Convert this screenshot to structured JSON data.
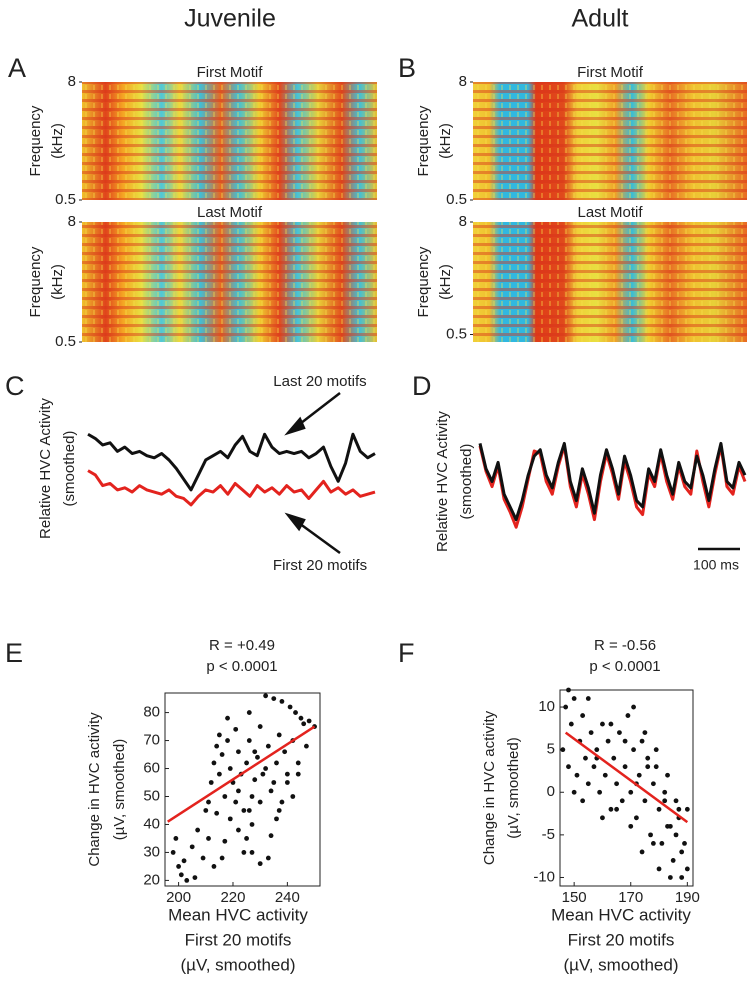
{
  "column_titles": [
    "Juvenile",
    "Adult"
  ],
  "chart_data": [
    {
      "type": "spectrogram",
      "panel": "A",
      "title": "First Motif",
      "ylabel": [
        "Frequency",
        "(kHz)"
      ],
      "ylim": [
        0.5,
        8
      ],
      "yticks": [
        0.5,
        8
      ]
    },
    {
      "type": "spectrogram",
      "title": "Last Motif",
      "ylabel": [
        "Frequency",
        "(kHz)"
      ],
      "ylim": [
        0.5,
        8
      ],
      "yticks": [
        0.5,
        8
      ]
    },
    {
      "type": "spectrogram",
      "panel": "B",
      "title": "First Motif",
      "ylabel": [
        "Frequency",
        "(kHz)"
      ],
      "ylim": [
        0.5,
        8
      ],
      "yticks": [
        0.5,
        8
      ]
    },
    {
      "type": "spectrogram",
      "title": "Last Motif",
      "ylabel": [
        "Frequency",
        "(kHz)"
      ],
      "ylim": [
        0,
        8
      ],
      "yticks": [
        0.5,
        8
      ]
    },
    {
      "type": "line",
      "panel": "C",
      "ylabel": [
        "Relative HVC Activity",
        "(smoothed)"
      ],
      "ylim": [
        0,
        100
      ],
      "series": [
        {
          "name": "Last 20 motifs",
          "color": "#111111",
          "values": [
            82,
            78,
            72,
            74,
            66,
            70,
            64,
            66,
            62,
            60,
            64,
            58,
            50,
            40,
            30,
            44,
            58,
            62,
            66,
            60,
            72,
            80,
            66,
            62,
            82,
            70,
            64,
            66,
            64,
            66,
            60,
            64,
            70,
            52,
            38,
            55,
            82,
            66,
            60,
            64
          ]
        },
        {
          "name": "First 20 motifs",
          "color": "#e3231e",
          "values": [
            48,
            44,
            34,
            36,
            30,
            32,
            28,
            34,
            30,
            28,
            26,
            30,
            24,
            22,
            16,
            24,
            30,
            28,
            34,
            26,
            36,
            30,
            24,
            34,
            28,
            32,
            26,
            34,
            28,
            30,
            22,
            30,
            38,
            28,
            32,
            26,
            30,
            24,
            26,
            28
          ]
        }
      ]
    },
    {
      "type": "line",
      "panel": "D",
      "ylabel": [
        "Relative HVC Activity",
        "(smoothed)"
      ],
      "ylim": [
        0,
        100
      ],
      "scalebar": "100 ms",
      "series": [
        {
          "color": "#e3231e",
          "values": [
            78,
            58,
            46,
            62,
            36,
            26,
            14,
            30,
            52,
            74,
            72,
            50,
            40,
            62,
            78,
            46,
            30,
            56,
            40,
            20,
            50,
            72,
            56,
            36,
            66,
            50,
            30,
            24,
            56,
            46,
            72,
            50,
            36,
            62,
            46,
            40,
            74,
            50,
            30,
            56,
            78,
            46,
            40,
            62,
            50
          ]
        },
        {
          "color": "#111111",
          "values": [
            80,
            60,
            50,
            65,
            40,
            30,
            20,
            35,
            55,
            70,
            75,
            55,
            45,
            65,
            80,
            50,
            35,
            60,
            45,
            25,
            55,
            75,
            60,
            40,
            70,
            55,
            35,
            30,
            60,
            50,
            75,
            55,
            40,
            65,
            50,
            45,
            70,
            55,
            35,
            60,
            80,
            50,
            45,
            65,
            55
          ]
        }
      ]
    },
    {
      "type": "scatter",
      "panel": "E",
      "title": [
        "R = +0.49",
        "p < 0.0001"
      ],
      "xlabel": [
        "Mean HVC activity",
        "First 20 motifs",
        "(µV, smoothed)"
      ],
      "ylabel": [
        "Change in HVC activity",
        "(µV, smoothed)"
      ],
      "xlim": [
        195,
        252
      ],
      "xticks": [
        200,
        220,
        240
      ],
      "ylim": [
        18,
        87
      ],
      "yticks": [
        20,
        30,
        40,
        50,
        60,
        70,
        80
      ],
      "series": [
        {
          "color": "#111111",
          "x": [
            198,
            199,
            200,
            201,
            202,
            203,
            205,
            206,
            207,
            209,
            211,
            210,
            212,
            213,
            214,
            215,
            215,
            216,
            217,
            218,
            219,
            220,
            221,
            222,
            222,
            223,
            224,
            225,
            226,
            227,
            227,
            228,
            229,
            230,
            230,
            231,
            232,
            233,
            234,
            235,
            236,
            237,
            238,
            239,
            240,
            241,
            242,
            243,
            245,
            246,
            248,
            250,
            247,
            244,
            238,
            236,
            234,
            233,
            230,
            227,
            225,
            224,
            222,
            219,
            217,
            216,
            213,
            211,
            214,
            218,
            221,
            226,
            228,
            232,
            235,
            237,
            240,
            242,
            244,
            226
          ],
          "values": [
            30,
            35,
            25,
            22,
            27,
            20,
            32,
            21,
            38,
            28,
            35,
            45,
            55,
            62,
            68,
            58,
            72,
            65,
            50,
            78,
            60,
            55,
            48,
            66,
            52,
            58,
            45,
            62,
            70,
            50,
            40,
            56,
            64,
            75,
            48,
            58,
            86,
            68,
            52,
            85,
            62,
            72,
            84,
            66,
            58,
            82,
            70,
            80,
            78,
            76,
            77,
            75,
            68,
            62,
            48,
            42,
            36,
            28,
            26,
            30,
            35,
            30,
            38,
            42,
            34,
            28,
            25,
            48,
            44,
            70,
            74,
            80,
            66,
            60,
            55,
            45,
            55,
            50,
            58,
            45
          ]
        }
      ],
      "fit": {
        "color": "#e3231e",
        "x": [
          196,
          250
        ],
        "y": [
          41,
          75
        ]
      }
    },
    {
      "type": "scatter",
      "panel": "F",
      "title": [
        "R = -0.56",
        "p < 0.0001"
      ],
      "xlabel": [
        "Mean HVC activity",
        "First 20 motifs",
        "(µV, smoothed)"
      ],
      "ylabel": [
        "Change in HVC activity",
        "(µV, smoothed)"
      ],
      "xlim": [
        145,
        192
      ],
      "xticks": [
        150,
        170,
        190
      ],
      "ylim": [
        -11,
        12
      ],
      "yticks": [
        -10,
        -5,
        0,
        5,
        10
      ],
      "series": [
        {
          "color": "#111111",
          "x": [
            146,
            147,
            148,
            149,
            150,
            151,
            152,
            153,
            154,
            155,
            156,
            157,
            158,
            159,
            160,
            161,
            162,
            163,
            164,
            165,
            166,
            167,
            168,
            169,
            170,
            171,
            172,
            173,
            174,
            175,
            176,
            177,
            178,
            179,
            180,
            181,
            182,
            183,
            184,
            185,
            186,
            187,
            188,
            189,
            190,
            148,
            150,
            153,
            155,
            158,
            160,
            163,
            165,
            168,
            170,
            172,
            174,
            176,
            178,
            180,
            182,
            184,
            186,
            188,
            190,
            171,
            175,
            179,
            183,
            187
          ],
          "values": [
            5,
            10,
            3,
            8,
            11,
            2,
            6,
            9,
            4,
            1,
            7,
            3,
            5,
            0,
            8,
            2,
            6,
            -2,
            4,
            1,
            7,
            -1,
            3,
            9,
            0,
            5,
            -3,
            2,
            6,
            -1,
            4,
            -5,
            1,
            3,
            -2,
            -6,
            0,
            2,
            -4,
            -8,
            -1,
            -3,
            -10,
            -6,
            -2,
            12,
            0,
            -1,
            11,
            4,
            -3,
            8,
            -2,
            6,
            -4,
            1,
            -7,
            3,
            -6,
            -9,
            -1,
            -10,
            -5,
            -7,
            -9,
            10,
            7,
            5,
            -4,
            -2
          ]
        }
      ],
      "fit": {
        "color": "#e3231e",
        "x": [
          147,
          190
        ],
        "y": [
          7,
          -3.5
        ]
      }
    }
  ]
}
